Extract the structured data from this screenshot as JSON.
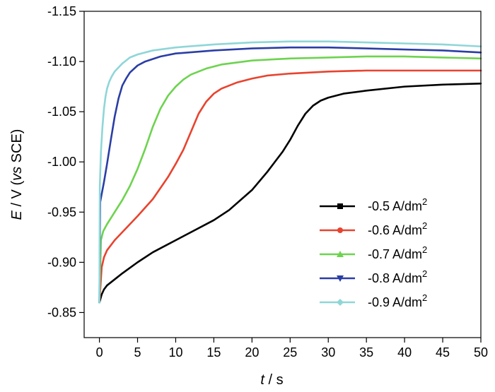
{
  "chart_data": {
    "type": "line",
    "xlabel": {
      "var": "t",
      "unit": " / s"
    },
    "ylabel": {
      "var": "E",
      "pre": " / V (",
      "vs": "vs",
      "post": " SCE)"
    },
    "xlim": [
      -2,
      50
    ],
    "ylim": [
      -0.825,
      -1.15
    ],
    "xticks": [
      0,
      5,
      10,
      15,
      20,
      25,
      30,
      35,
      40,
      45,
      50
    ],
    "yticks": [
      -0.85,
      -0.9,
      -0.95,
      -1.0,
      -1.05,
      -1.1,
      -1.15
    ],
    "ytick_labels": [
      "-0.85",
      "-0.90",
      "-0.95",
      "-1.00",
      "-1.05",
      "-1.10",
      "-1.15"
    ],
    "legend_position": "lower-right",
    "series": [
      {
        "name": "-0.5 A/dm",
        "sup": "2",
        "color": "#000000",
        "marker": "square",
        "x": [
          0,
          0.3,
          0.6,
          1,
          2,
          3,
          5,
          7,
          10,
          12,
          15,
          17,
          20,
          22,
          24,
          25,
          26,
          27,
          28,
          29,
          30,
          32,
          35,
          40,
          45,
          50
        ],
        "y": [
          -0.86,
          -0.868,
          -0.873,
          -0.877,
          -0.883,
          -0.889,
          -0.9,
          -0.91,
          -0.922,
          -0.93,
          -0.942,
          -0.952,
          -0.972,
          -0.99,
          -1.01,
          -1.022,
          -1.036,
          -1.048,
          -1.056,
          -1.061,
          -1.064,
          -1.068,
          -1.071,
          -1.075,
          -1.077,
          -1.078
        ]
      },
      {
        "name": "-0.6 A/dm",
        "sup": "2",
        "color": "#e8432e",
        "marker": "circle",
        "x": [
          0,
          0.3,
          0.6,
          1,
          2,
          3,
          5,
          7,
          9,
          10,
          11,
          12,
          13,
          14,
          15,
          16,
          17,
          18,
          20,
          22,
          25,
          30,
          35,
          40,
          45,
          50
        ],
        "y": [
          -0.86,
          -0.895,
          -0.905,
          -0.912,
          -0.922,
          -0.93,
          -0.946,
          -0.963,
          -0.985,
          -0.998,
          -1.012,
          -1.03,
          -1.048,
          -1.06,
          -1.068,
          -1.073,
          -1.076,
          -1.079,
          -1.083,
          -1.086,
          -1.088,
          -1.09,
          -1.091,
          -1.091,
          -1.091,
          -1.091
        ]
      },
      {
        "name": "-0.7 A/dm",
        "sup": "2",
        "color": "#6dd34f",
        "marker": "triangle-up",
        "x": [
          0,
          0.2,
          0.5,
          1,
          2,
          3,
          4,
          5,
          6,
          7,
          8,
          9,
          10,
          11,
          12,
          14,
          16,
          20,
          25,
          30,
          35,
          40,
          45,
          50
        ],
        "y": [
          -0.86,
          -0.922,
          -0.931,
          -0.938,
          -0.95,
          -0.962,
          -0.976,
          -0.993,
          -1.013,
          -1.035,
          -1.053,
          -1.066,
          -1.075,
          -1.082,
          -1.087,
          -1.093,
          -1.097,
          -1.101,
          -1.103,
          -1.104,
          -1.105,
          -1.105,
          -1.104,
          -1.103
        ]
      },
      {
        "name": "-0.8 A/dm",
        "sup": "2",
        "color": "#2a3ea6",
        "marker": "triangle-down",
        "x": [
          0,
          0.1,
          0.3,
          0.6,
          1,
          1.5,
          2,
          2.5,
          3,
          3.5,
          4,
          5,
          6,
          8,
          10,
          15,
          20,
          25,
          30,
          35,
          40,
          45,
          50
        ],
        "y": [
          -0.86,
          -0.96,
          -0.968,
          -0.98,
          -0.998,
          -1.022,
          -1.045,
          -1.063,
          -1.076,
          -1.083,
          -1.089,
          -1.096,
          -1.1,
          -1.105,
          -1.108,
          -1.111,
          -1.113,
          -1.114,
          -1.114,
          -1.113,
          -1.112,
          -1.111,
          -1.109
        ]
      },
      {
        "name": "-0.9 A/dm",
        "sup": "2",
        "color": "#8fd6d8",
        "marker": "diamond",
        "x": [
          0,
          0.05,
          0.2,
          0.4,
          0.6,
          0.8,
          1,
          1.3,
          1.6,
          2,
          3,
          4,
          5,
          7,
          10,
          15,
          20,
          25,
          30,
          35,
          40,
          45,
          50
        ],
        "y": [
          -0.86,
          -0.975,
          -1.01,
          -1.035,
          -1.053,
          -1.065,
          -1.073,
          -1.08,
          -1.085,
          -1.09,
          -1.098,
          -1.104,
          -1.107,
          -1.111,
          -1.114,
          -1.117,
          -1.119,
          -1.12,
          -1.12,
          -1.119,
          -1.118,
          -1.117,
          -1.115
        ]
      }
    ]
  }
}
